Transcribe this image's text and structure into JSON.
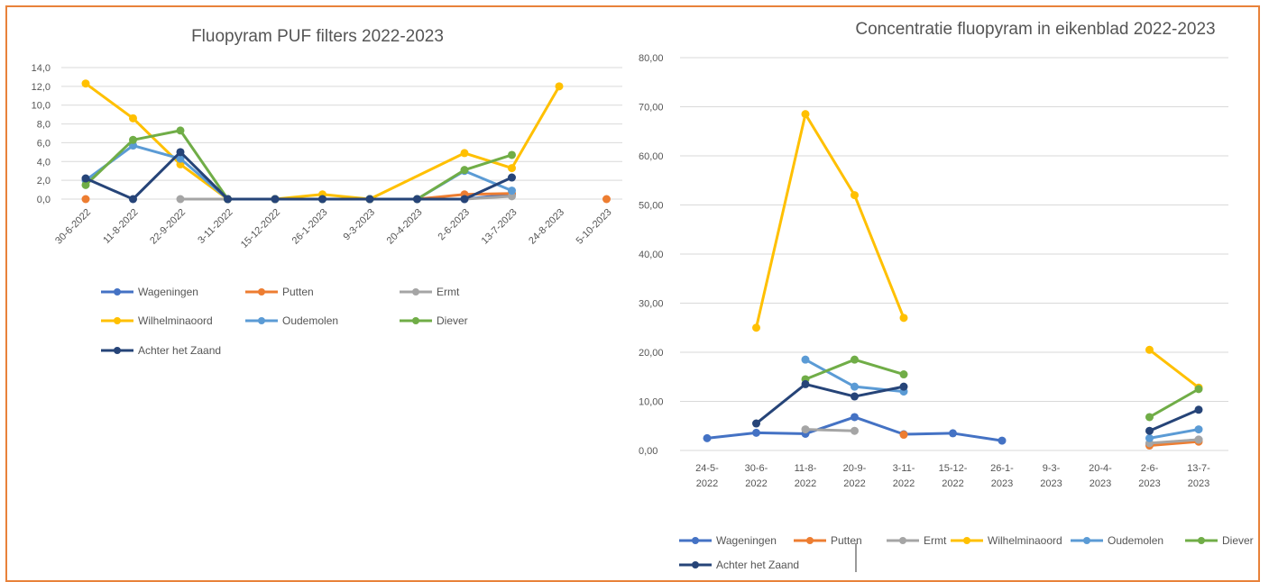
{
  "colors": {
    "frame": "#e8823a",
    "grid": "#d9d9d9",
    "series": [
      "#4472c4",
      "#ed7d31",
      "#a5a5a5",
      "#ffc000",
      "#5b9bd5",
      "#70ad47",
      "#264478"
    ]
  },
  "chart_data": [
    {
      "type": "line",
      "title": "Fluopyram PUF filters 2022-2023",
      "categories": [
        "30-6-2022",
        "11-8-2022",
        "22-9-2022",
        "3-11-2022",
        "15-12-2022",
        "26-1-2023",
        "9-3-2023",
        "20-4-2023",
        "2-6-2023",
        "13-7-2023",
        "24-8-2023",
        "5-10-2023"
      ],
      "ylim": [
        0,
        14
      ],
      "yticks": [
        "0,0",
        "2,0",
        "4,0",
        "6,0",
        "8,0",
        "10,0",
        "12,0",
        "14,0"
      ],
      "grid": true,
      "legend": "bottom",
      "series": [
        {
          "name": "Wageningen",
          "values": [
            null,
            null,
            null,
            0,
            0,
            0,
            0,
            0,
            0,
            0.5,
            null,
            null
          ]
        },
        {
          "name": "Putten",
          "values": [
            0,
            null,
            null,
            0,
            0,
            0,
            0,
            0,
            0.5,
            0.6,
            null,
            0
          ]
        },
        {
          "name": "Ermt",
          "values": [
            null,
            null,
            0,
            0,
            0,
            0,
            0,
            0,
            0,
            0.3,
            null,
            null
          ]
        },
        {
          "name": "Wilhelminaoord",
          "values": [
            12.3,
            8.6,
            3.7,
            0,
            0,
            0.5,
            0,
            null,
            4.9,
            3.3,
            12.0,
            null
          ]
        },
        {
          "name": "Oudemolen",
          "values": [
            2.0,
            5.7,
            4.3,
            0,
            0,
            0,
            0,
            0,
            3.0,
            0.9,
            null,
            null
          ]
        },
        {
          "name": "Diever",
          "values": [
            1.5,
            6.3,
            7.3,
            0,
            0,
            0,
            0,
            0,
            3.1,
            4.7,
            null,
            null
          ]
        },
        {
          "name": "Achter het Zaand",
          "values": [
            2.2,
            0,
            5.0,
            0,
            0,
            0,
            0,
            0,
            0,
            2.3,
            null,
            null
          ]
        }
      ]
    },
    {
      "type": "line",
      "title": "Concentratie fluopyram in eikenblad  2022-2023",
      "categories": [
        [
          "24-5-",
          "2022"
        ],
        [
          "30-6-",
          "2022"
        ],
        [
          "11-8-",
          "2022"
        ],
        [
          "20-9-",
          "2022"
        ],
        [
          "3-11-",
          "2022"
        ],
        [
          "15-12-",
          "2022"
        ],
        [
          "26-1-",
          "2023"
        ],
        [
          "9-3-",
          "2023"
        ],
        [
          "20-4-",
          "2023"
        ],
        [
          "2-6-",
          "2023"
        ],
        [
          "13-7-",
          "2023"
        ]
      ],
      "ylim": [
        0,
        80
      ],
      "yticks": [
        "0,00",
        "10,00",
        "20,00",
        "30,00",
        "40,00",
        "50,00",
        "60,00",
        "70,00",
        "80,00"
      ],
      "grid": true,
      "legend": "bottom",
      "series": [
        {
          "name": "Wageningen",
          "values": [
            2.5,
            3.6,
            3.4,
            6.8,
            3.3,
            3.5,
            2.0,
            null,
            null,
            1.3,
            2.2
          ]
        },
        {
          "name": "Putten",
          "values": [
            null,
            null,
            null,
            null,
            3.2,
            null,
            null,
            null,
            null,
            1.0,
            1.8
          ]
        },
        {
          "name": "Ermt",
          "values": [
            null,
            null,
            4.3,
            4.0,
            null,
            null,
            null,
            null,
            null,
            1.5,
            2.2
          ]
        },
        {
          "name": "Wilhelminaoord",
          "values": [
            null,
            25.0,
            68.5,
            52.0,
            27.0,
            null,
            null,
            null,
            null,
            20.5,
            12.8
          ]
        },
        {
          "name": "Oudemolen",
          "values": [
            null,
            null,
            18.5,
            13.0,
            12.0,
            null,
            null,
            null,
            null,
            2.5,
            4.3
          ]
        },
        {
          "name": "Diever",
          "values": [
            null,
            null,
            14.5,
            18.5,
            15.5,
            null,
            null,
            null,
            null,
            6.8,
            12.5
          ]
        },
        {
          "name": "Achter het Zaand",
          "values": [
            null,
            5.5,
            13.5,
            11.0,
            13.0,
            null,
            null,
            null,
            null,
            4.0,
            8.3
          ]
        }
      ]
    }
  ]
}
